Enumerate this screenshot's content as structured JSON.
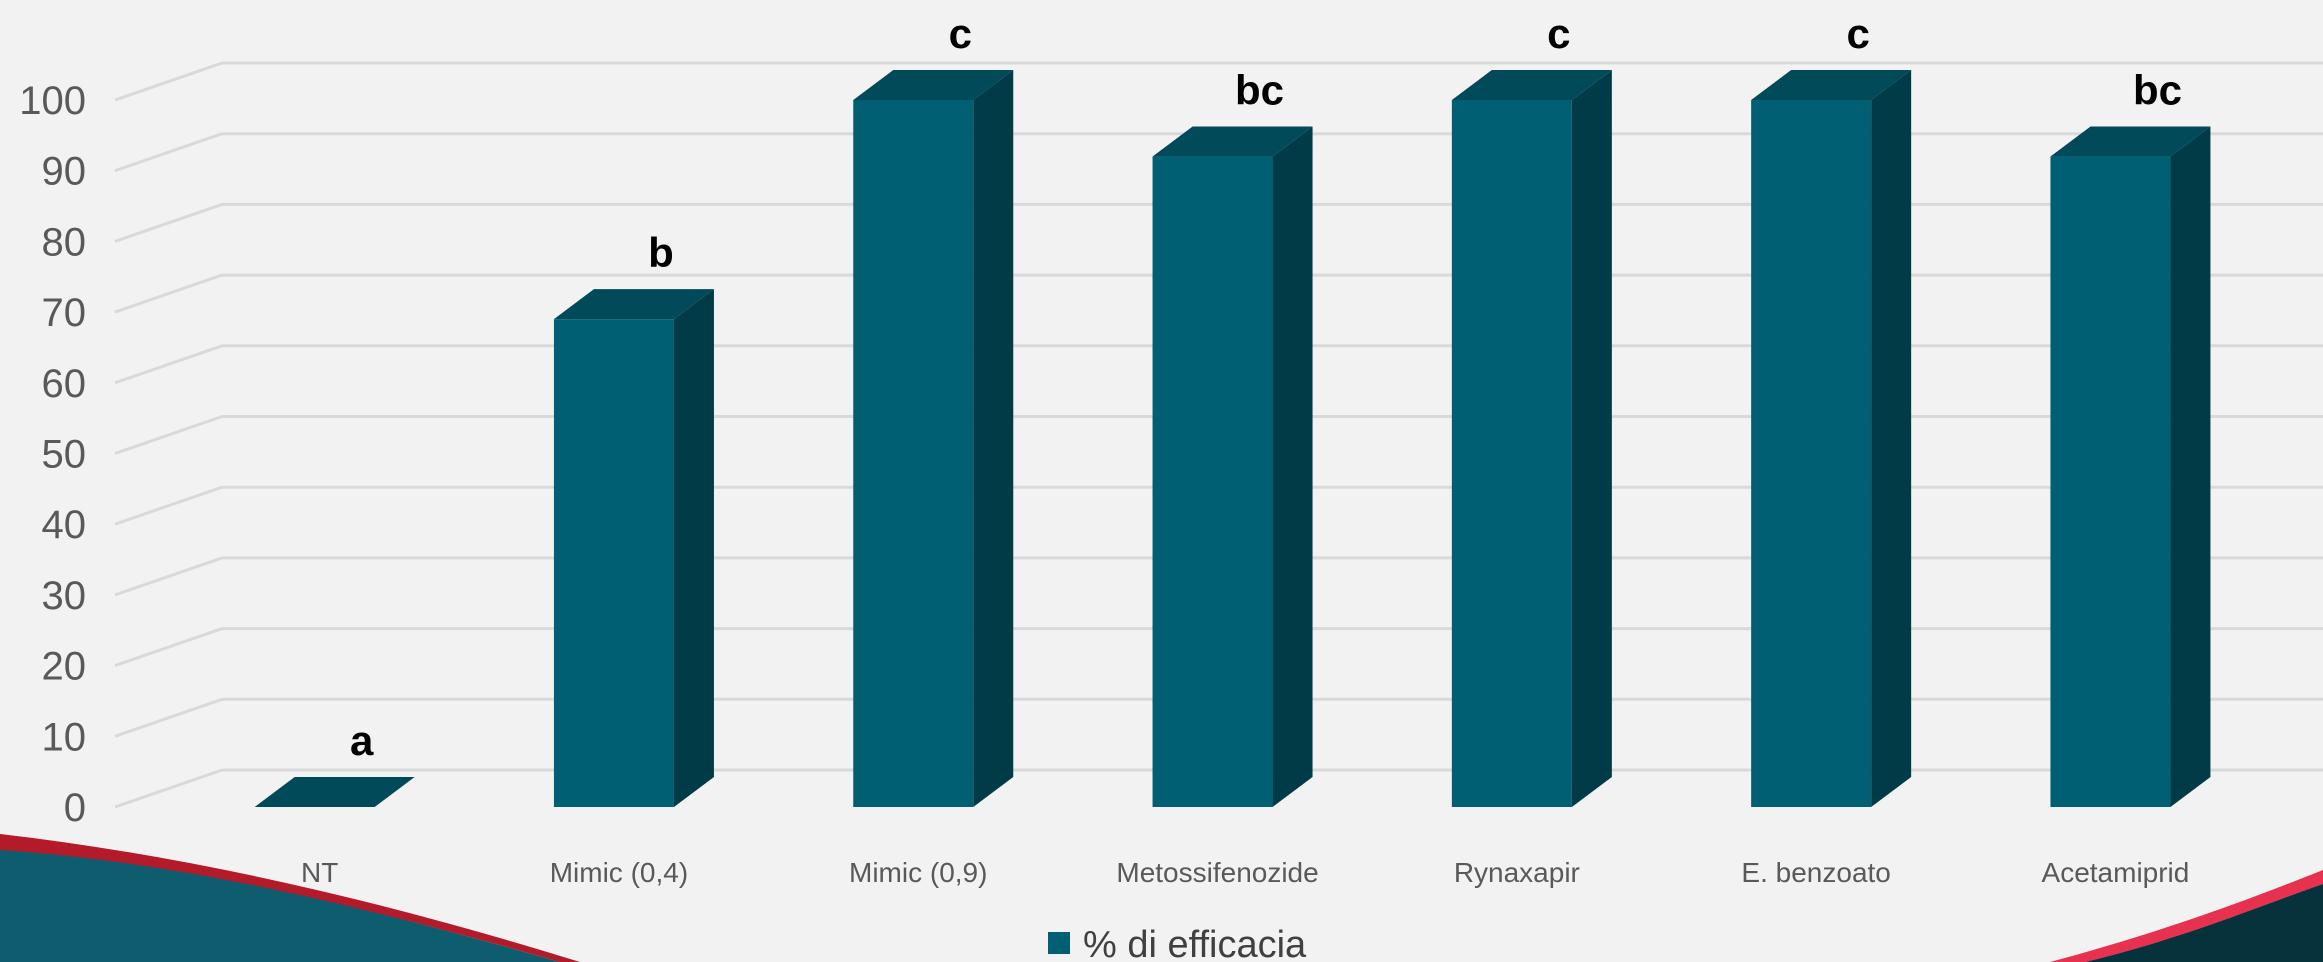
{
  "chart_data": {
    "type": "bar",
    "title": "",
    "xlabel": "",
    "ylabel": "",
    "categories": [
      "NT",
      "Mimic (0,4)",
      "Mimic (0,9)",
      "Metossifenozide",
      "Rynaxapir",
      "E. benzoato",
      "Acetamiprid"
    ],
    "series": [
      {
        "name": "% di efficacia",
        "values": [
          0,
          69,
          100,
          92,
          100,
          100,
          92
        ],
        "significance_letters": [
          "a",
          "b",
          "c",
          "bc",
          "c",
          "c",
          "bc"
        ]
      }
    ],
    "ylim": [
      0,
      100
    ],
    "yticks": [
      0,
      10,
      20,
      30,
      40,
      50,
      60,
      70,
      80,
      90,
      100
    ],
    "grid": true,
    "legend_position": "bottom",
    "three_d": true
  },
  "colors": {
    "bar_front": "#005f73",
    "bar_top": "#004a59",
    "bar_side": "#003b47",
    "gridline": "#d9d9d9",
    "wave_teal": "#0e5d6e",
    "wave_red": "#b31b2b",
    "wave_pink": "#e8314f",
    "wave_dark": "#06323c"
  }
}
